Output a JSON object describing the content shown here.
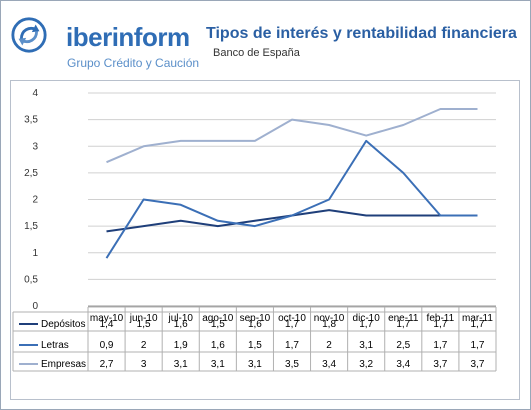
{
  "header": {
    "brand_bold": "iber",
    "brand_rest": "inform",
    "tagline": "Grupo Crédito y Caución",
    "title": "Tipos de interés y rentabilidad financiera",
    "subtitle": "Banco de España"
  },
  "colors": {
    "brand": "#2f6db5",
    "depositos": "#1f3f7a",
    "letras": "#3b6fb6",
    "empresas": "#9fb0cf",
    "grid": "#d0d0d0"
  },
  "chart_data": {
    "type": "line",
    "title": "Tipos de interés y rentabilidad financiera",
    "subtitle": "Banco de España",
    "categories": [
      "may-10",
      "jun-10",
      "jul-10",
      "ago-10",
      "sep-10",
      "oct-10",
      "nov-10",
      "dic-10",
      "ene-11",
      "feb-11",
      "mar-11"
    ],
    "ylim": [
      0,
      4
    ],
    "yticks": [
      "0",
      "0,5",
      "1",
      "1,5",
      "2",
      "2,5",
      "3",
      "3,5",
      "4"
    ],
    "grid": true,
    "legend": "data-table-left",
    "series": [
      {
        "name": "Depósitos",
        "values": [
          1.4,
          1.5,
          1.6,
          1.5,
          1.6,
          1.7,
          1.8,
          1.7,
          1.7,
          1.7,
          1.7
        ],
        "labels": [
          "1,4",
          "1,5",
          "1,6",
          "1,5",
          "1,6",
          "1,7",
          "1,8",
          "1,7",
          "1,7",
          "1,7",
          "1,7"
        ]
      },
      {
        "name": "Letras",
        "values": [
          0.9,
          2,
          1.9,
          1.6,
          1.5,
          1.7,
          2,
          3.1,
          2.5,
          1.7,
          1.7
        ],
        "labels": [
          "0,9",
          "2",
          "1,9",
          "1,6",
          "1,5",
          "1,7",
          "2",
          "3,1",
          "2,5",
          "1,7",
          "1,7"
        ]
      },
      {
        "name": "Empresas",
        "values": [
          2.7,
          3,
          3.1,
          3.1,
          3.1,
          3.5,
          3.4,
          3.2,
          3.4,
          3.7,
          3.7
        ],
        "labels": [
          "2,7",
          "3",
          "3,1",
          "3,1",
          "3,1",
          "3,5",
          "3,4",
          "3,2",
          "3,4",
          "3,7",
          "3,7"
        ]
      }
    ]
  }
}
